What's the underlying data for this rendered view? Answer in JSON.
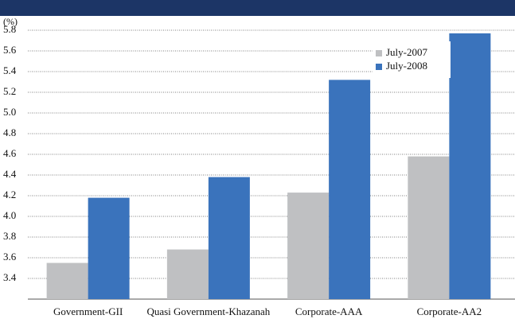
{
  "chart_data": {
    "type": "bar",
    "y_label": "(%)",
    "categories": [
      "Government-GII",
      "Quasi Government-Khazanah",
      "Corporate-AAA",
      "Corporate-AA2"
    ],
    "series": [
      {
        "name": "July-2007",
        "color": "#bfc0c2",
        "values": [
          3.55,
          3.68,
          4.23,
          4.58
        ]
      },
      {
        "name": "July-2008",
        "color": "#3a73bc",
        "values": [
          4.18,
          4.38,
          5.32,
          5.77
        ]
      }
    ],
    "ylim": [
      3.2,
      5.8
    ],
    "yticks": [
      3.4,
      3.6,
      3.8,
      {
        "value": 4,
        "label": "4.0"
      },
      4.2,
      4.4,
      4.6,
      4.8,
      {
        "value": 5,
        "label": "5.0"
      },
      5.2,
      5.4,
      5.6,
      5.8
    ],
    "grid": true,
    "legend": "upper right"
  }
}
